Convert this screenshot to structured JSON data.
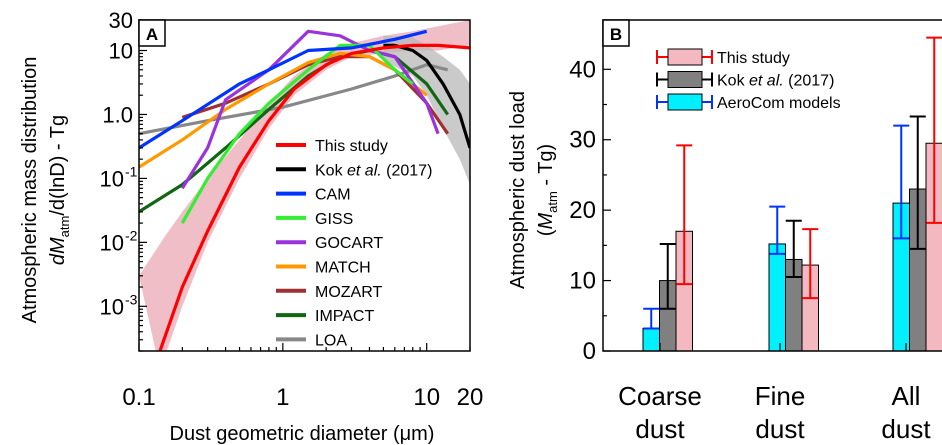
{
  "chart_data": [
    {
      "panel_label": "A",
      "type": "line",
      "xlabel": "Dust geometric diameter (μm)",
      "ylabel_line1": "Atmospheric mass distribution",
      "ylabel_line2_prefix": "dM",
      "ylabel_line2_sub": "atm",
      "ylabel_line2_suffix": "/d(lnD) - Tg",
      "x_scale": "log",
      "y_scale": "log",
      "xlim": [
        0.1,
        20
      ],
      "ylim": [
        0.0002,
        30
      ],
      "x_tick_labels": [
        {
          "value": 0.1,
          "label": "0.1"
        },
        {
          "value": 1,
          "label": "1"
        },
        {
          "value": 10,
          "label": "10"
        },
        {
          "value": 20,
          "label": "20"
        }
      ],
      "y_tick_labels": [
        {
          "value": 30,
          "label": "30"
        },
        {
          "value": 10,
          "label": "10"
        },
        {
          "value": 1,
          "label": "1.0"
        },
        {
          "value": 0.1,
          "base": "10",
          "exp": "-1"
        },
        {
          "value": 0.01,
          "base": "10",
          "exp": "-2"
        },
        {
          "value": 0.001,
          "base": "10",
          "exp": "-3"
        }
      ],
      "legend_position": "right",
      "legend": [
        {
          "label": "This study",
          "color": "#ff0000"
        },
        {
          "label_pre": "Kok ",
          "label_italic": "et al.",
          "label_post": " (2017)",
          "color": "#000000"
        },
        {
          "label": "CAM",
          "color": "#0033ff"
        },
        {
          "label": "GISS",
          "color": "#33ee33"
        },
        {
          "label": "GOCART",
          "color": "#9933dd"
        },
        {
          "label": "MATCH",
          "color": "#ff9900"
        },
        {
          "label": "MOZART",
          "color": "#a03030"
        },
        {
          "label": "IMPACT",
          "color": "#116611"
        },
        {
          "label": "LOA",
          "color": "#888888"
        }
      ],
      "bands": [
        {
          "name": "This study",
          "color": "#e9a8b4",
          "lower": [
            [
              0.14,
              0.0001
            ],
            [
              0.2,
              0.001
            ],
            [
              0.3,
              0.01
            ],
            [
              0.5,
              0.1
            ],
            [
              0.8,
              0.6
            ],
            [
              1.2,
              2.0
            ],
            [
              2,
              5
            ],
            [
              3,
              8
            ],
            [
              5,
              9
            ],
            [
              8,
              10
            ],
            [
              12,
              10
            ],
            [
              20,
              12
            ]
          ],
          "upper": [
            [
              0.1,
              0.003
            ],
            [
              0.15,
              0.012
            ],
            [
              0.2,
              0.03
            ],
            [
              0.3,
              0.1
            ],
            [
              0.5,
              0.4
            ],
            [
              0.8,
              1.5
            ],
            [
              1.2,
              4
            ],
            [
              2,
              9
            ],
            [
              3,
              13
            ],
            [
              5,
              17
            ],
            [
              8,
              20
            ],
            [
              12,
              24
            ],
            [
              20,
              30
            ]
          ]
        },
        {
          "name": "Kok et al. (2017)",
          "color": "#b8b8b8",
          "lower": [
            [
              5,
              7
            ],
            [
              8,
              4
            ],
            [
              10,
              2
            ],
            [
              13,
              0.6
            ],
            [
              17,
              0.2
            ],
            [
              20,
              0.08
            ]
          ],
          "upper": [
            [
              5,
              17
            ],
            [
              8,
              16
            ],
            [
              10,
              12
            ],
            [
              13,
              8
            ],
            [
              17,
              5
            ],
            [
              20,
              3
            ]
          ]
        }
      ],
      "series": [
        {
          "name": "LOA",
          "color": "#888888",
          "points": [
            [
              0.1,
              0.5
            ],
            [
              0.3,
              0.8
            ],
            [
              1,
              1.3
            ],
            [
              3,
              2.5
            ],
            [
              6,
              4
            ],
            [
              10,
              6
            ],
            [
              14,
              5
            ]
          ]
        },
        {
          "name": "IMPACT",
          "color": "#116611",
          "points": [
            [
              0.1,
              0.03
            ],
            [
              0.2,
              0.08
            ],
            [
              0.4,
              0.3
            ],
            [
              0.8,
              1.2
            ],
            [
              1.5,
              4
            ],
            [
              2.5,
              8
            ],
            [
              4,
              10
            ],
            [
              6,
              8
            ],
            [
              10,
              3
            ],
            [
              14,
              1
            ]
          ]
        },
        {
          "name": "MOZART",
          "color": "#a03030",
          "points": [
            [
              0.2,
              0.9
            ],
            [
              0.4,
              1.5
            ],
            [
              0.8,
              3
            ],
            [
              1.5,
              6
            ],
            [
              2.5,
              8
            ],
            [
              4,
              8
            ],
            [
              6,
              5
            ],
            [
              10,
              1.5
            ],
            [
              14,
              0.5
            ]
          ]
        },
        {
          "name": "MATCH",
          "color": "#ff9900",
          "points": [
            [
              0.1,
              0.15
            ],
            [
              0.2,
              0.4
            ],
            [
              0.4,
              1.2
            ],
            [
              0.8,
              3
            ],
            [
              1.5,
              6.5
            ],
            [
              2.5,
              9
            ],
            [
              4,
              8
            ],
            [
              6,
              5
            ],
            [
              10,
              2
            ]
          ]
        },
        {
          "name": "GOCART",
          "color": "#9933dd",
          "points": [
            [
              0.2,
              0.07
            ],
            [
              0.3,
              0.3
            ],
            [
              0.4,
              1.7
            ],
            [
              0.8,
              5
            ],
            [
              1.5,
              20
            ],
            [
              2.5,
              17
            ],
            [
              4,
              10
            ],
            [
              6,
              8
            ],
            [
              10,
              1.5
            ],
            [
              12,
              0.5
            ]
          ]
        },
        {
          "name": "GISS",
          "color": "#33ee33",
          "points": [
            [
              0.2,
              0.02
            ],
            [
              0.3,
              0.1
            ],
            [
              0.5,
              0.5
            ],
            [
              0.8,
              1.5
            ],
            [
              1.5,
              5
            ],
            [
              2.5,
              12
            ],
            [
              4,
              12
            ],
            [
              6,
              5
            ],
            [
              8,
              3
            ]
          ]
        },
        {
          "name": "CAM",
          "color": "#0033ff",
          "points": [
            [
              0.1,
              0.3
            ],
            [
              0.2,
              0.8
            ],
            [
              0.5,
              3
            ],
            [
              0.8,
              5
            ],
            [
              1.5,
              10
            ],
            [
              3,
              11
            ],
            [
              6,
              15
            ],
            [
              10,
              20
            ]
          ]
        },
        {
          "name": "Kok et al. (2017)",
          "color": "#000000",
          "points": [
            [
              5,
              12
            ],
            [
              6,
              12
            ],
            [
              8,
              10
            ],
            [
              10,
              7
            ],
            [
              13,
              3
            ],
            [
              17,
              1
            ],
            [
              20,
              0.3
            ]
          ]
        },
        {
          "name": "This study",
          "color": "#ff0000",
          "points": [
            [
              0.14,
              0.0002
            ],
            [
              0.2,
              0.002
            ],
            [
              0.3,
              0.015
            ],
            [
              0.5,
              0.15
            ],
            [
              0.8,
              0.8
            ],
            [
              1.2,
              2.5
            ],
            [
              2,
              6
            ],
            [
              3,
              9
            ],
            [
              5,
              11
            ],
            [
              8,
              12
            ],
            [
              12,
              12
            ],
            [
              20,
              11
            ]
          ]
        }
      ]
    },
    {
      "panel_label": "B",
      "type": "bar",
      "ylabel_line1": "Atmospheric dust load",
      "ylabel_line2_prefix": "(M",
      "ylabel_line2_sub": "atm",
      "ylabel_line2_suffix": " - Tg)",
      "ylim": [
        0,
        47
      ],
      "y_tick_labels": [
        {
          "value": 0,
          "label": "0"
        },
        {
          "value": 10,
          "label": "10"
        },
        {
          "value": 20,
          "label": "20"
        },
        {
          "value": 30,
          "label": "30"
        },
        {
          "value": 40,
          "label": "40"
        }
      ],
      "categories": [
        {
          "line1": "Coarse",
          "line2": "dust"
        },
        {
          "line1": "Fine",
          "line2": "dust"
        },
        {
          "line1": "All",
          "line2": "dust"
        }
      ],
      "legend_position": "top-left",
      "series": [
        {
          "name": "AeroCom models",
          "fill": "#00f0ff",
          "err_color": "#0033ff",
          "values": [
            3.2,
            15.2,
            21.0
          ],
          "err_low": [
            3.2,
            13.8,
            16.0
          ],
          "err_high": [
            6.0,
            20.5,
            32.0
          ]
        },
        {
          "name_pre": "Kok ",
          "name_italic": "et al.",
          "name_post": " (2017)",
          "fill": "#808080",
          "err_color": "#000000",
          "values": [
            10.0,
            13.0,
            23.0
          ],
          "err_low": [
            6.0,
            10.5,
            14.5
          ],
          "err_high": [
            15.2,
            18.5,
            33.3
          ]
        },
        {
          "name": "This study",
          "fill": "#f4b8c0",
          "err_color": "#ff0000",
          "values": [
            17.0,
            12.2,
            29.5
          ],
          "err_low": [
            9.5,
            7.5,
            18.2
          ],
          "err_high": [
            29.2,
            17.3,
            44.5
          ]
        }
      ]
    }
  ]
}
